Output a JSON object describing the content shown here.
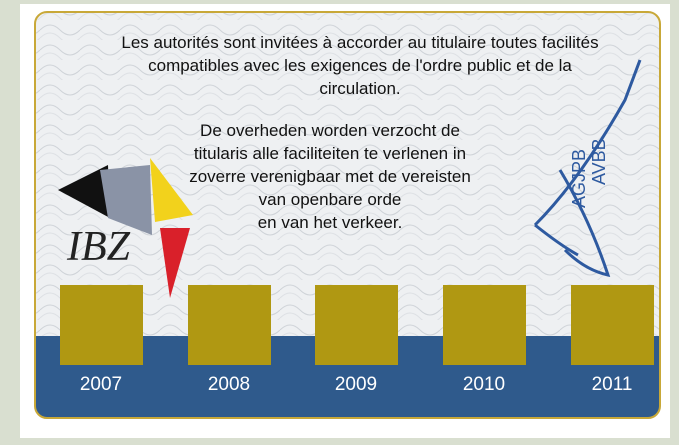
{
  "french_text": [
    "Les autorités sont invitées à accorder au titulaire toutes facilités",
    "compatibles avec les exigences de l'ordre public et de la",
    "circulation."
  ],
  "dutch_text": [
    "De overheden worden verzocht de",
    "titularis alle faciliteiten te verlenen in",
    "zoverre verenigbaar met de vereisten",
    "van openbare orde",
    "en van het verkeer."
  ],
  "logo_left": "IBZ",
  "logo_right": [
    "AGJPB",
    "AVBB"
  ],
  "years": [
    "2007",
    "2008",
    "2009",
    "2010",
    "2011"
  ]
}
